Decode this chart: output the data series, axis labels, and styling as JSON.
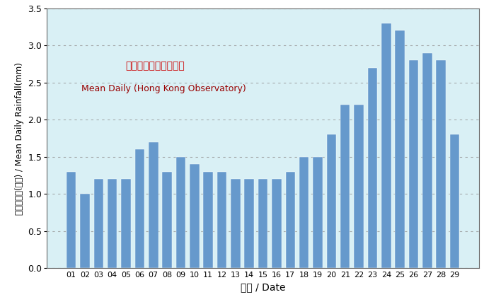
{
  "categories": [
    "01",
    "02",
    "03",
    "04",
    "05",
    "06",
    "07",
    "08",
    "09",
    "10",
    "11",
    "12",
    "13",
    "14",
    "15",
    "16",
    "17",
    "18",
    "19",
    "20",
    "21",
    "22",
    "23",
    "24",
    "25",
    "26",
    "27",
    "28",
    "29"
  ],
  "values": [
    1.3,
    1.0,
    1.2,
    1.2,
    1.2,
    1.6,
    1.7,
    1.3,
    1.5,
    1.4,
    1.3,
    1.3,
    1.2,
    1.2,
    1.2,
    1.2,
    1.3,
    1.5,
    1.5,
    1.8,
    2.2,
    2.2,
    2.7,
    3.3,
    3.2,
    2.8,
    2.9,
    2.8,
    1.8
  ],
  "bar_color": "#6699CC",
  "background_color": "#D9F0F5",
  "ylabel_chinese": "平均日雨量(毫米) / Mean Daily Rainfall(mm)",
  "xlabel": "日期 / Date",
  "legend_line1": "平均日雨量（天文台）",
  "legend_line2": "Mean Daily (Hong Kong Observatory)",
  "ylim": [
    0,
    3.5
  ],
  "yticks": [
    0,
    0.5,
    1.0,
    1.5,
    2.0,
    2.5,
    3.0,
    3.5
  ],
  "grid_color": "#999999",
  "outer_bg": "#FFFFFF",
  "legend1_color": "#CC0000",
  "legend2_color": "#990000"
}
